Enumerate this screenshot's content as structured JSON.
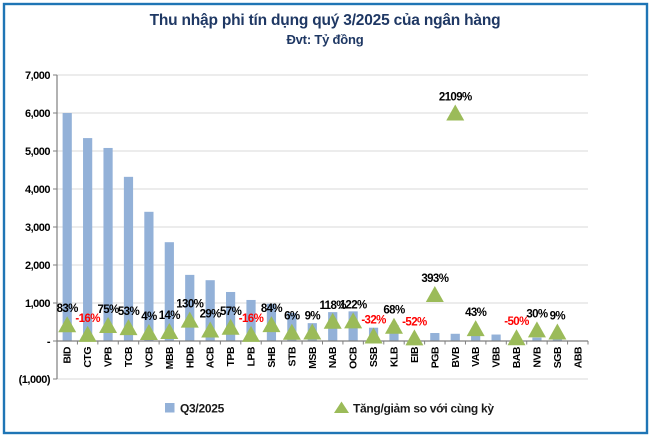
{
  "title": "Thu nhập phi tín dụng quý 3/2025 của ngân hàng",
  "subtitle": "Đvt: Tỷ đồng",
  "colors": {
    "border": "#1F75B5",
    "bar": "#93B1D8",
    "triangle": "#9BBB59",
    "title": "#1F3864",
    "label": "#000000",
    "negative_label": "#FF0000",
    "grid": "#D9D9D9",
    "axis": "#7F7F7F"
  },
  "legend": [
    {
      "label": "Q3/2025",
      "marker": "square",
      "color": "#93B1D8"
    },
    {
      "label": "Tăng/giảm so với cùng kỳ",
      "marker": "triangle",
      "color": "#9BBB59"
    }
  ],
  "chart_data": {
    "type": "bar",
    "title": "Thu nhập phi tín dụng quý 3/2025 của ngân hàng",
    "unit_note": "Đvt: Tỷ đồng",
    "categories": [
      "BID",
      "CTG",
      "VPB",
      "TCB",
      "VCB",
      "MBB",
      "HDB",
      "ACB",
      "TPB",
      "LPB",
      "SHB",
      "STB",
      "MSB",
      "NAB",
      "OCB",
      "SSB",
      "KLB",
      "EIB",
      "PGB",
      "BVB",
      "VAB",
      "VBB",
      "BAB",
      "NVB",
      "SGB",
      "ABB"
    ],
    "series": [
      {
        "name": "Q3/2025",
        "type": "bar",
        "unit": "tỷ đồng",
        "values": [
          6000,
          5340,
          5080,
          4320,
          3400,
          2600,
          1740,
          1600,
          1290,
          1080,
          980,
          740,
          470,
          760,
          780,
          350,
          420,
          50,
          210,
          190,
          170,
          170,
          0,
          90,
          110,
          0
        ]
      },
      {
        "name": "Tăng/giảm so với cùng kỳ",
        "type": "triangle-marker",
        "unit": "%",
        "values": [
          83,
          -16,
          75,
          53,
          4,
          14,
          130,
          29,
          57,
          -16,
          84,
          6,
          9,
          118,
          122,
          -32,
          68,
          -52,
          393,
          2109,
          43,
          null,
          -50,
          30,
          9,
          null
        ]
      }
    ],
    "ylim": [
      -1000,
      7000
    ],
    "y_tick_labels": [
      "7,000",
      "6,000",
      "5,000",
      "4,000",
      "3,000",
      "2,000",
      "1,000",
      "-",
      "(1,000)"
    ],
    "grid": true,
    "legend_position": "bottom"
  }
}
